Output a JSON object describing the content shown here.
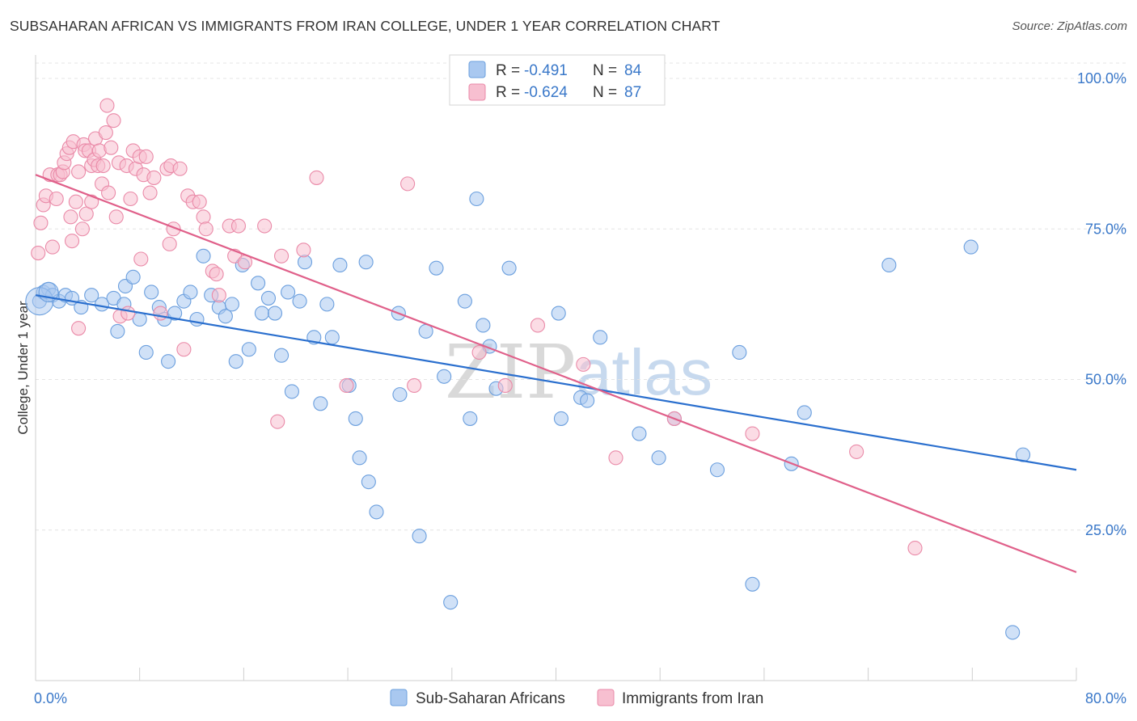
{
  "title": "SUBSAHARAN AFRICAN VS IMMIGRANTS FROM IRAN COLLEGE, UNDER 1 YEAR CORRELATION CHART",
  "source": "Source: ZipAtlas.com",
  "watermark": {
    "zip": "ZIP",
    "atlas": "atlas"
  },
  "legend_top": {
    "r_label": "R =",
    "n_label": "N =",
    "rows": [
      {
        "r": "-0.491",
        "n": "84"
      },
      {
        "r": "-0.624",
        "n": "87"
      }
    ]
  },
  "chart_data": {
    "type": "scatter",
    "ylabel": "College, Under 1 year",
    "xlim": [
      0,
      80
    ],
    "ylim": [
      0,
      100
    ],
    "x_tick_labels": [
      "0.0%",
      "80.0%"
    ],
    "y_ticks": [
      {
        "value": 100,
        "label": "100.0%"
      },
      {
        "value": 75,
        "label": "75.0%"
      },
      {
        "value": 50,
        "label": "50.0%"
      },
      {
        "value": 25,
        "label": "25.0%"
      }
    ],
    "grid": true,
    "legend_position": "bottom-center",
    "series": [
      {
        "name": "Sub-Saharan Africans",
        "color": "#6b9fde",
        "fill": "#a9c8f0",
        "line_color": "#2a6fce",
        "trend": {
          "x": [
            0,
            80
          ],
          "y": [
            64,
            35
          ]
        },
        "points": [
          [
            0.3,
            63
          ],
          [
            0.6,
            64.5
          ],
          [
            1.0,
            65
          ],
          [
            1.3,
            64
          ],
          [
            1.8,
            63
          ],
          [
            2.3,
            64
          ],
          [
            2.8,
            63.5
          ],
          [
            3.5,
            62
          ],
          [
            4.3,
            64
          ],
          [
            5.1,
            62.5
          ],
          [
            6.0,
            63.5
          ],
          [
            6.3,
            58
          ],
          [
            6.8,
            62.5
          ],
          [
            6.9,
            65.5
          ],
          [
            7.5,
            67
          ],
          [
            8.0,
            60
          ],
          [
            8.5,
            54.5
          ],
          [
            8.9,
            64.5
          ],
          [
            9.5,
            62
          ],
          [
            9.9,
            60
          ],
          [
            10.2,
            53
          ],
          [
            10.7,
            61
          ],
          [
            11.4,
            63
          ],
          [
            11.9,
            64.5
          ],
          [
            12.4,
            60
          ],
          [
            12.9,
            70.5
          ],
          [
            13.5,
            64
          ],
          [
            14.1,
            62
          ],
          [
            14.6,
            60.5
          ],
          [
            15.1,
            62.5
          ],
          [
            15.4,
            53
          ],
          [
            15.9,
            69
          ],
          [
            16.4,
            55
          ],
          [
            17.1,
            66
          ],
          [
            17.4,
            61
          ],
          [
            17.9,
            63.5
          ],
          [
            18.4,
            61
          ],
          [
            18.9,
            54
          ],
          [
            19.4,
            64.5
          ],
          [
            19.7,
            48
          ],
          [
            20.3,
            63
          ],
          [
            20.7,
            69.5
          ],
          [
            21.4,
            57
          ],
          [
            21.9,
            46
          ],
          [
            22.4,
            62.5
          ],
          [
            22.8,
            57
          ],
          [
            23.4,
            69
          ],
          [
            24.1,
            49
          ],
          [
            24.6,
            43.5
          ],
          [
            24.9,
            37
          ],
          [
            25.4,
            69.5
          ],
          [
            25.6,
            33
          ],
          [
            26.2,
            28
          ],
          [
            27.9,
            61
          ],
          [
            28.0,
            47.5
          ],
          [
            29.5,
            24
          ],
          [
            30.0,
            58
          ],
          [
            30.8,
            68.5
          ],
          [
            31.4,
            50.5
          ],
          [
            31.9,
            13
          ],
          [
            33.0,
            63
          ],
          [
            33.4,
            43.5
          ],
          [
            33.9,
            80
          ],
          [
            34.4,
            59
          ],
          [
            34.9,
            55.5
          ],
          [
            35.4,
            48.5
          ],
          [
            36.4,
            68.5
          ],
          [
            40.2,
            61
          ],
          [
            40.4,
            43.5
          ],
          [
            41.9,
            47
          ],
          [
            42.4,
            46.5
          ],
          [
            43.4,
            57
          ],
          [
            46.4,
            41
          ],
          [
            47.9,
            37
          ],
          [
            49.1,
            43.5
          ],
          [
            52.4,
            35
          ],
          [
            54.1,
            54.5
          ],
          [
            55.1,
            16
          ],
          [
            58.1,
            36
          ],
          [
            59.1,
            44.5
          ],
          [
            65.6,
            69
          ],
          [
            71.9,
            72
          ],
          [
            75.1,
            8
          ],
          [
            75.9,
            37.5
          ]
        ]
      },
      {
        "name": "Immigrants from Iran",
        "color": "#ea8aa8",
        "fill": "#f7bfd0",
        "line_color": "#e0608a",
        "trend": {
          "x": [
            0,
            80
          ],
          "y": [
            84,
            18
          ]
        },
        "points": [
          [
            0.2,
            71
          ],
          [
            0.4,
            76
          ],
          [
            0.6,
            79
          ],
          [
            0.8,
            80.5
          ],
          [
            1.1,
            84
          ],
          [
            1.3,
            72
          ],
          [
            1.6,
            80
          ],
          [
            1.7,
            84
          ],
          [
            1.9,
            84
          ],
          [
            2.1,
            84.5
          ],
          [
            2.2,
            86
          ],
          [
            2.4,
            87.5
          ],
          [
            2.6,
            88.5
          ],
          [
            2.7,
            77
          ],
          [
            2.8,
            73
          ],
          [
            2.9,
            89.5
          ],
          [
            3.1,
            79.5
          ],
          [
            3.3,
            84.5
          ],
          [
            3.3,
            58.5
          ],
          [
            3.6,
            75
          ],
          [
            3.7,
            89
          ],
          [
            3.8,
            88
          ],
          [
            3.9,
            77.5
          ],
          [
            4.1,
            88
          ],
          [
            4.3,
            79.5
          ],
          [
            4.3,
            85.5
          ],
          [
            4.5,
            86.5
          ],
          [
            4.6,
            90
          ],
          [
            4.8,
            85.5
          ],
          [
            4.9,
            88
          ],
          [
            5.1,
            82.5
          ],
          [
            5.2,
            85.5
          ],
          [
            5.4,
            91
          ],
          [
            5.5,
            95.5
          ],
          [
            5.6,
            81
          ],
          [
            5.8,
            88.5
          ],
          [
            6.0,
            93
          ],
          [
            6.2,
            77
          ],
          [
            6.4,
            86
          ],
          [
            6.5,
            60.5
          ],
          [
            7.0,
            85.5
          ],
          [
            7.1,
            61
          ],
          [
            7.3,
            80
          ],
          [
            7.5,
            88
          ],
          [
            7.7,
            85
          ],
          [
            8.0,
            87
          ],
          [
            8.1,
            70
          ],
          [
            8.3,
            84
          ],
          [
            8.5,
            87
          ],
          [
            8.8,
            81
          ],
          [
            9.1,
            83.5
          ],
          [
            9.6,
            61
          ],
          [
            10.1,
            85
          ],
          [
            10.3,
            72.5
          ],
          [
            10.4,
            85.5
          ],
          [
            10.6,
            75
          ],
          [
            11.1,
            85
          ],
          [
            11.4,
            55
          ],
          [
            11.7,
            80.5
          ],
          [
            12.1,
            79.5
          ],
          [
            12.6,
            79.5
          ],
          [
            12.9,
            77
          ],
          [
            13.1,
            75
          ],
          [
            13.6,
            68
          ],
          [
            13.9,
            67.5
          ],
          [
            14.1,
            64
          ],
          [
            14.9,
            75.5
          ],
          [
            15.3,
            70.5
          ],
          [
            15.6,
            75.5
          ],
          [
            16.1,
            69.5
          ],
          [
            17.6,
            75.5
          ],
          [
            18.6,
            43
          ],
          [
            18.9,
            70.5
          ],
          [
            20.6,
            71.5
          ],
          [
            21.6,
            83.5
          ],
          [
            23.9,
            49
          ],
          [
            28.6,
            82.5
          ],
          [
            29.1,
            49
          ],
          [
            34.1,
            54.5
          ],
          [
            36.1,
            49
          ],
          [
            38.6,
            59
          ],
          [
            42.1,
            52.5
          ],
          [
            44.6,
            37
          ],
          [
            49.1,
            43.5
          ],
          [
            55.1,
            41
          ],
          [
            63.1,
            38
          ],
          [
            67.6,
            22
          ]
        ]
      }
    ]
  }
}
